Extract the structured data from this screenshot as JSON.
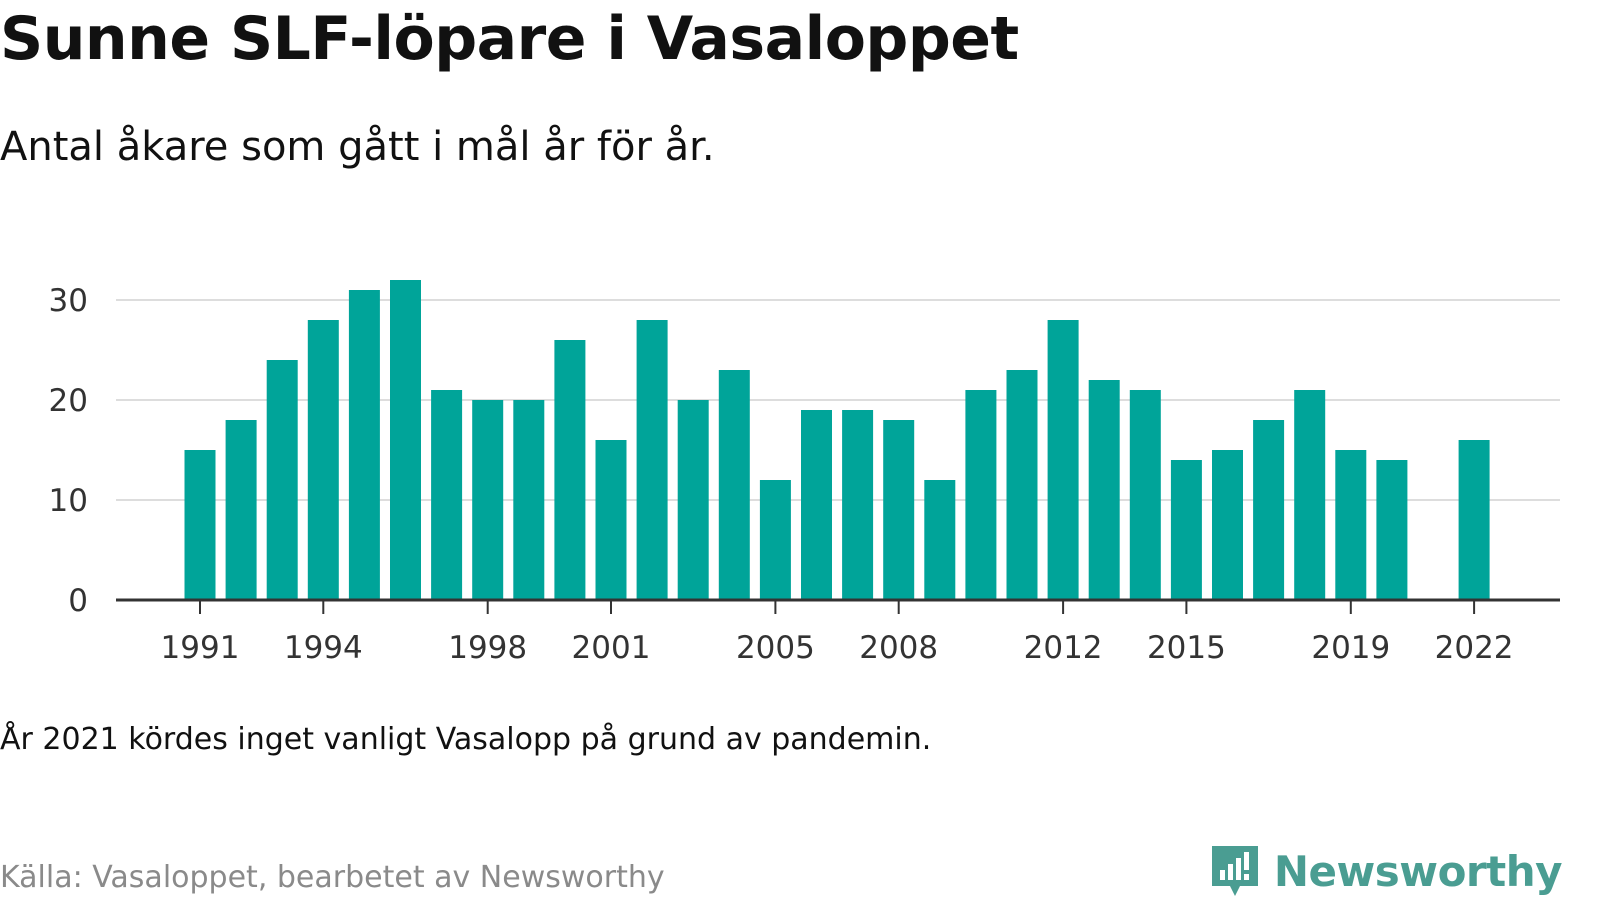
{
  "title": "Sunne SLF-löpare i Vasaloppet",
  "subtitle": "Antal åkare som gått i mål år för år.",
  "note": "År 2021 kördes inget vanligt Vasalopp på grund av pandemin.",
  "source": "Källa: Vasaloppet, bearbetet av Newsworthy",
  "brand": {
    "name": "Newsworthy",
    "icon": "newsworthy-logo-icon",
    "color": "#4a9d92"
  },
  "chart_data": {
    "type": "bar",
    "title": "Sunne SLF-löpare i Vasaloppet",
    "subtitle": "Antal åkare som gått i mål år för år.",
    "categories": [
      1991,
      1992,
      1993,
      1994,
      1995,
      1996,
      1997,
      1998,
      1999,
      2000,
      2001,
      2002,
      2003,
      2004,
      2005,
      2006,
      2007,
      2008,
      2009,
      2010,
      2011,
      2012,
      2013,
      2014,
      2015,
      2016,
      2017,
      2018,
      2019,
      2020,
      2021,
      2022
    ],
    "values": [
      15,
      18,
      24,
      28,
      31,
      32,
      21,
      20,
      20,
      26,
      16,
      28,
      20,
      23,
      12,
      19,
      19,
      18,
      12,
      21,
      23,
      28,
      22,
      21,
      14,
      15,
      18,
      21,
      15,
      14,
      null,
      16
    ],
    "x_tick_labels": [
      "1991",
      "1994",
      "1998",
      "2001",
      "2005",
      "2008",
      "2012",
      "2015",
      "2019",
      "2022"
    ],
    "y_ticks": [
      0,
      10,
      20,
      30
    ],
    "ylim": [
      0,
      33
    ],
    "xlabel": "",
    "ylabel": "",
    "grid": true,
    "bar_color": "#00a499",
    "grid_color": "#dddddd",
    "axis_color": "#333333"
  }
}
